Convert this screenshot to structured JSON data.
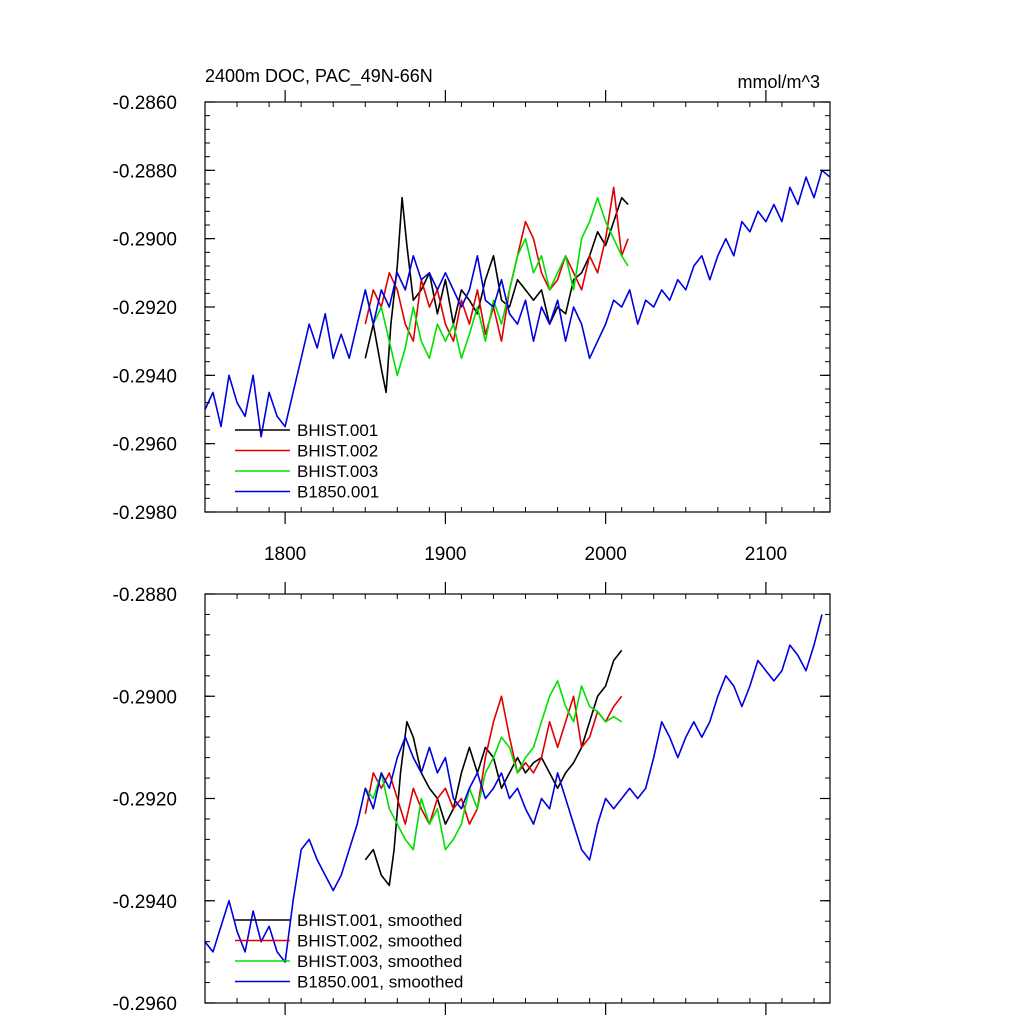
{
  "chart_data": [
    {
      "type": "line",
      "title": "2400m DOC, PAC_49N-66N",
      "units": "mmol/m^3",
      "xlabel": "",
      "ylabel": "",
      "xlim": [
        1750,
        2140
      ],
      "ylim": [
        -0.298,
        -0.286
      ],
      "x_ticks": [
        1800,
        1900,
        2000,
        2100
      ],
      "x_tick_labels": [
        "1800",
        "1900",
        "2000",
        "2100"
      ],
      "y_ticks": [
        -0.286,
        -0.288,
        -0.29,
        -0.292,
        -0.294,
        -0.296,
        -0.298
      ],
      "y_tick_labels": [
        "-0.2860",
        "-0.2880",
        "-0.2900",
        "-0.2920",
        "-0.2940",
        "-0.2960",
        "-0.2980"
      ],
      "grid": false,
      "legend_position": "bottom-left",
      "series": [
        {
          "name": "BHIST.001",
          "color": "#000000",
          "x": [
            1850,
            1855,
            1860,
            1863,
            1866,
            1870,
            1873,
            1876,
            1880,
            1885,
            1890,
            1895,
            1900,
            1905,
            1910,
            1915,
            1920,
            1925,
            1930,
            1935,
            1940,
            1945,
            1950,
            1955,
            1960,
            1965,
            1970,
            1975,
            1980,
            1985,
            1990,
            1995,
            2000,
            2005,
            2010,
            2014
          ],
          "values": [
            -0.2935,
            -0.2925,
            -0.2938,
            -0.2945,
            -0.2925,
            -0.2908,
            -0.2888,
            -0.2902,
            -0.2918,
            -0.2915,
            -0.291,
            -0.2922,
            -0.2912,
            -0.2925,
            -0.2915,
            -0.2918,
            -0.2922,
            -0.2912,
            -0.2905,
            -0.2918,
            -0.292,
            -0.2912,
            -0.2915,
            -0.2918,
            -0.2915,
            -0.2925,
            -0.292,
            -0.2922,
            -0.2912,
            -0.291,
            -0.2905,
            -0.2898,
            -0.2902,
            -0.2895,
            -0.2888,
            -0.289
          ]
        },
        {
          "name": "BHIST.002",
          "color": "#e00000",
          "x": [
            1850,
            1855,
            1860,
            1865,
            1870,
            1875,
            1880,
            1885,
            1890,
            1895,
            1900,
            1905,
            1910,
            1915,
            1920,
            1925,
            1930,
            1935,
            1940,
            1945,
            1950,
            1955,
            1960,
            1965,
            1970,
            1975,
            1980,
            1985,
            1990,
            1995,
            2000,
            2005,
            2010,
            2014
          ],
          "values": [
            -0.2925,
            -0.2915,
            -0.292,
            -0.291,
            -0.2915,
            -0.2925,
            -0.293,
            -0.2912,
            -0.292,
            -0.2915,
            -0.2925,
            -0.293,
            -0.2918,
            -0.2925,
            -0.2915,
            -0.2928,
            -0.292,
            -0.293,
            -0.2915,
            -0.2905,
            -0.2895,
            -0.29,
            -0.291,
            -0.2915,
            -0.2912,
            -0.2905,
            -0.291,
            -0.2915,
            -0.2905,
            -0.291,
            -0.29,
            -0.2885,
            -0.2905,
            -0.29
          ]
        },
        {
          "name": "BHIST.003",
          "color": "#00e000",
          "x": [
            1850,
            1855,
            1860,
            1865,
            1870,
            1875,
            1880,
            1885,
            1890,
            1895,
            1900,
            1905,
            1910,
            1915,
            1920,
            1925,
            1930,
            1935,
            1940,
            1945,
            1950,
            1955,
            1960,
            1965,
            1970,
            1975,
            1980,
            1985,
            1990,
            1995,
            2000,
            2005,
            2010,
            2014
          ],
          "values": [
            -0.2915,
            -0.2925,
            -0.292,
            -0.293,
            -0.294,
            -0.2932,
            -0.292,
            -0.293,
            -0.2935,
            -0.2925,
            -0.293,
            -0.2925,
            -0.2935,
            -0.2928,
            -0.292,
            -0.293,
            -0.2918,
            -0.2925,
            -0.2915,
            -0.2905,
            -0.29,
            -0.291,
            -0.2905,
            -0.2915,
            -0.291,
            -0.2905,
            -0.2915,
            -0.29,
            -0.2895,
            -0.2888,
            -0.2895,
            -0.29,
            -0.2905,
            -0.2908
          ]
        },
        {
          "name": "B1850.001",
          "color": "#0000e0",
          "x": [
            1750,
            1755,
            1760,
            1765,
            1770,
            1775,
            1780,
            1785,
            1790,
            1795,
            1800,
            1805,
            1810,
            1815,
            1820,
            1825,
            1830,
            1835,
            1840,
            1845,
            1850,
            1855,
            1860,
            1865,
            1870,
            1875,
            1880,
            1885,
            1890,
            1895,
            1900,
            1905,
            1910,
            1915,
            1920,
            1925,
            1930,
            1935,
            1940,
            1945,
            1950,
            1955,
            1960,
            1965,
            1970,
            1975,
            1980,
            1985,
            1990,
            1995,
            2000,
            2005,
            2010,
            2015,
            2020,
            2025,
            2030,
            2035,
            2040,
            2045,
            2050,
            2055,
            2060,
            2065,
            2070,
            2075,
            2080,
            2085,
            2090,
            2095,
            2100,
            2105,
            2110,
            2115,
            2120,
            2125,
            2130,
            2135,
            2140
          ],
          "values": [
            -0.295,
            -0.2945,
            -0.2955,
            -0.294,
            -0.2948,
            -0.2952,
            -0.294,
            -0.2958,
            -0.2945,
            -0.2952,
            -0.2955,
            -0.2945,
            -0.2935,
            -0.2925,
            -0.2932,
            -0.2922,
            -0.2935,
            -0.2928,
            -0.2935,
            -0.2925,
            -0.2915,
            -0.2925,
            -0.2915,
            -0.292,
            -0.291,
            -0.2915,
            -0.2905,
            -0.2912,
            -0.291,
            -0.2915,
            -0.291,
            -0.2915,
            -0.292,
            -0.2915,
            -0.2905,
            -0.2918,
            -0.292,
            -0.2912,
            -0.2922,
            -0.2925,
            -0.2918,
            -0.293,
            -0.292,
            -0.2925,
            -0.2918,
            -0.293,
            -0.292,
            -0.2925,
            -0.2935,
            -0.293,
            -0.2925,
            -0.2918,
            -0.292,
            -0.2915,
            -0.2925,
            -0.2918,
            -0.292,
            -0.2915,
            -0.2918,
            -0.2912,
            -0.2915,
            -0.2908,
            -0.2905,
            -0.2912,
            -0.2905,
            -0.29,
            -0.2905,
            -0.2895,
            -0.2898,
            -0.2892,
            -0.2895,
            -0.289,
            -0.2895,
            -0.2885,
            -0.289,
            -0.2882,
            -0.2888,
            -0.288,
            -0.2882
          ]
        }
      ]
    },
    {
      "type": "line",
      "title": "",
      "xlabel": "",
      "ylabel": "",
      "xlim": [
        1750,
        2140
      ],
      "ylim": [
        -0.296,
        -0.288
      ],
      "x_ticks": [
        1800,
        1900,
        2000,
        2100
      ],
      "x_tick_labels": [],
      "y_ticks": [
        -0.288,
        -0.29,
        -0.292,
        -0.294,
        -0.296
      ],
      "y_tick_labels": [
        "-0.2880",
        "-0.2900",
        "-0.2920",
        "-0.2940",
        "-0.2960"
      ],
      "grid": false,
      "legend_position": "bottom-left",
      "series": [
        {
          "name": "BHIST.001, smoothed",
          "color": "#000000",
          "x": [
            1850,
            1855,
            1860,
            1865,
            1868,
            1872,
            1876,
            1880,
            1885,
            1890,
            1895,
            1900,
            1905,
            1910,
            1915,
            1920,
            1925,
            1930,
            1935,
            1940,
            1945,
            1950,
            1955,
            1960,
            1965,
            1970,
            1975,
            1980,
            1985,
            1990,
            1995,
            2000,
            2005,
            2010
          ],
          "values": [
            -0.2932,
            -0.293,
            -0.2935,
            -0.2937,
            -0.293,
            -0.2915,
            -0.2905,
            -0.2908,
            -0.2915,
            -0.2918,
            -0.292,
            -0.2925,
            -0.2922,
            -0.2915,
            -0.291,
            -0.2915,
            -0.291,
            -0.2912,
            -0.2918,
            -0.2915,
            -0.2912,
            -0.2915,
            -0.2913,
            -0.2912,
            -0.2915,
            -0.2918,
            -0.2915,
            -0.2913,
            -0.291,
            -0.2905,
            -0.29,
            -0.2898,
            -0.2893,
            -0.2891
          ]
        },
        {
          "name": "BHIST.002, smoothed",
          "color": "#e00000",
          "x": [
            1850,
            1855,
            1860,
            1865,
            1870,
            1875,
            1880,
            1885,
            1890,
            1895,
            1900,
            1905,
            1910,
            1915,
            1920,
            1925,
            1930,
            1935,
            1940,
            1945,
            1950,
            1955,
            1960,
            1965,
            1970,
            1975,
            1980,
            1985,
            1990,
            1995,
            2000,
            2005,
            2010
          ],
          "values": [
            -0.2923,
            -0.2915,
            -0.2918,
            -0.2915,
            -0.292,
            -0.2925,
            -0.2918,
            -0.2922,
            -0.2925,
            -0.292,
            -0.2918,
            -0.2922,
            -0.292,
            -0.2925,
            -0.2922,
            -0.2912,
            -0.2905,
            -0.29,
            -0.2908,
            -0.2915,
            -0.2913,
            -0.2915,
            -0.2912,
            -0.2905,
            -0.291,
            -0.2905,
            -0.29,
            -0.291,
            -0.2908,
            -0.2903,
            -0.2905,
            -0.2902,
            -0.29
          ]
        },
        {
          "name": "BHIST.003, smoothed",
          "color": "#00e000",
          "x": [
            1850,
            1855,
            1860,
            1865,
            1870,
            1875,
            1880,
            1885,
            1890,
            1895,
            1900,
            1905,
            1910,
            1915,
            1920,
            1925,
            1930,
            1935,
            1940,
            1945,
            1950,
            1955,
            1960,
            1965,
            1970,
            1975,
            1980,
            1985,
            1990,
            1995,
            2000,
            2005,
            2010
          ],
          "values": [
            -0.2918,
            -0.292,
            -0.2915,
            -0.2922,
            -0.2925,
            -0.2928,
            -0.293,
            -0.292,
            -0.2925,
            -0.2922,
            -0.293,
            -0.2928,
            -0.2925,
            -0.2918,
            -0.2922,
            -0.2915,
            -0.2912,
            -0.2908,
            -0.291,
            -0.2915,
            -0.2912,
            -0.291,
            -0.2905,
            -0.29,
            -0.2897,
            -0.2902,
            -0.2905,
            -0.2898,
            -0.2902,
            -0.2903,
            -0.2905,
            -0.2904,
            -0.2905
          ]
        },
        {
          "name": "B1850.001, smoothed",
          "color": "#0000e0",
          "x": [
            1750,
            1755,
            1760,
            1765,
            1770,
            1775,
            1780,
            1785,
            1790,
            1795,
            1800,
            1805,
            1810,
            1815,
            1820,
            1825,
            1830,
            1835,
            1840,
            1845,
            1850,
            1855,
            1860,
            1865,
            1870,
            1875,
            1880,
            1885,
            1890,
            1895,
            1900,
            1905,
            1910,
            1915,
            1920,
            1925,
            1930,
            1935,
            1940,
            1945,
            1950,
            1955,
            1960,
            1965,
            1970,
            1975,
            1980,
            1985,
            1990,
            1995,
            2000,
            2005,
            2010,
            2015,
            2020,
            2025,
            2030,
            2035,
            2040,
            2045,
            2050,
            2055,
            2060,
            2065,
            2070,
            2075,
            2080,
            2085,
            2090,
            2095,
            2100,
            2105,
            2110,
            2115,
            2120,
            2125,
            2130,
            2135
          ],
          "values": [
            -0.2948,
            -0.295,
            -0.2945,
            -0.294,
            -0.2946,
            -0.295,
            -0.2942,
            -0.2948,
            -0.2945,
            -0.295,
            -0.2952,
            -0.294,
            -0.293,
            -0.2928,
            -0.2932,
            -0.2935,
            -0.2938,
            -0.2935,
            -0.293,
            -0.2925,
            -0.2918,
            -0.2922,
            -0.2915,
            -0.2918,
            -0.2912,
            -0.2908,
            -0.2912,
            -0.2915,
            -0.291,
            -0.2915,
            -0.2912,
            -0.292,
            -0.2922,
            -0.2918,
            -0.2915,
            -0.292,
            -0.2918,
            -0.2915,
            -0.292,
            -0.2918,
            -0.2922,
            -0.2925,
            -0.292,
            -0.2922,
            -0.2915,
            -0.292,
            -0.2925,
            -0.293,
            -0.2932,
            -0.2925,
            -0.292,
            -0.2922,
            -0.292,
            -0.2918,
            -0.292,
            -0.2918,
            -0.2912,
            -0.2905,
            -0.2908,
            -0.2912,
            -0.2908,
            -0.2905,
            -0.2908,
            -0.2905,
            -0.29,
            -0.2896,
            -0.2898,
            -0.2902,
            -0.2898,
            -0.2893,
            -0.2895,
            -0.2897,
            -0.2895,
            -0.289,
            -0.2892,
            -0.2895,
            -0.289,
            -0.2884
          ]
        }
      ]
    }
  ]
}
